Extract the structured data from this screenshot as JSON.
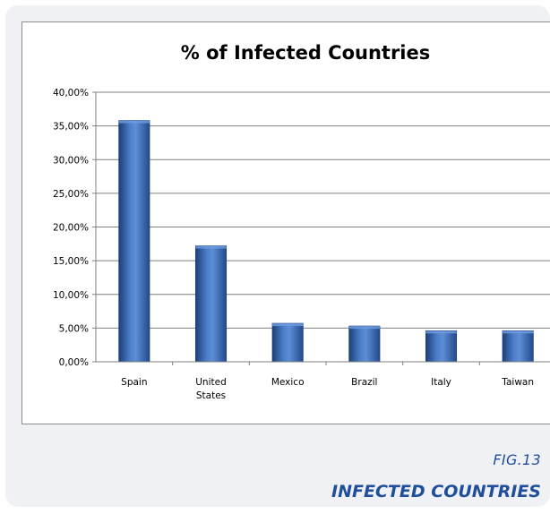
{
  "caption": {
    "figure_label": "FIG.13",
    "figure_title": "INFECTED COUNTRIES"
  },
  "colors": {
    "bar": "#3b6bb5",
    "caption": "#1f4e9b",
    "card_background": "#f0f1f5"
  },
  "chart_data": {
    "type": "bar",
    "title": "% of Infected Countries",
    "xlabel": "",
    "ylabel": "",
    "categories": [
      "Spain",
      "United States",
      "Mexico",
      "Brazil",
      "Italy",
      "Taiwan"
    ],
    "category_labels": [
      [
        "Spain"
      ],
      [
        "United",
        "States"
      ],
      [
        "Mexico"
      ],
      [
        "Brazil"
      ],
      [
        "Italy"
      ],
      [
        "Taiwan"
      ]
    ],
    "values": [
      35.8,
      17.2,
      5.7,
      5.3,
      4.6,
      4.6
    ],
    "value_unit": "%",
    "ylim": [
      0,
      40
    ],
    "yticks": [
      0,
      5,
      10,
      15,
      20,
      25,
      30,
      35,
      40
    ],
    "ytick_labels": [
      "0,00%",
      "5,00%",
      "10,00%",
      "15,00%",
      "20,00%",
      "25,00%",
      "30,00%",
      "35,00%",
      "40,00%"
    ],
    "grid": true,
    "legend": "none"
  }
}
